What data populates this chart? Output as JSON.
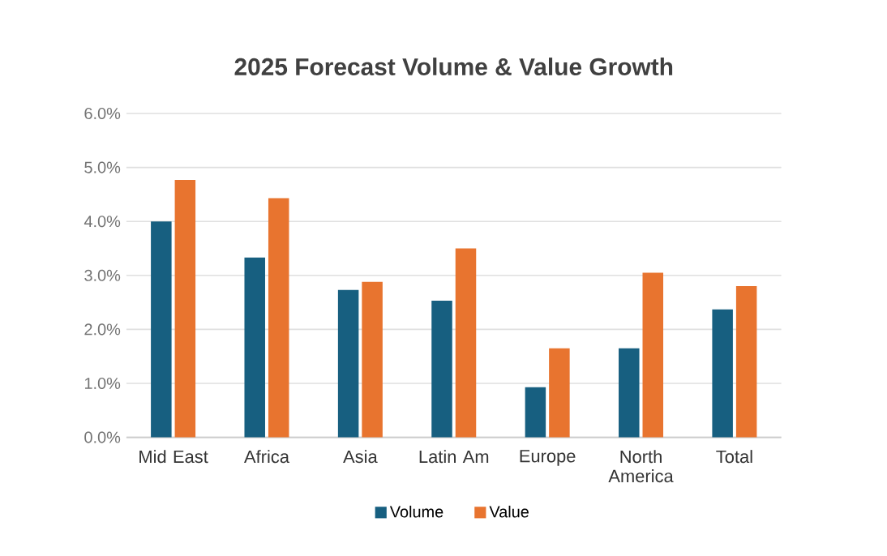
{
  "chart_data": {
    "type": "bar",
    "title": "2025 Forecast Volume & Value Growth",
    "categories": [
      "Mid East",
      "Africa",
      "Asia",
      "Latin Am",
      "Europe",
      "North America",
      "Total"
    ],
    "series": [
      {
        "name": "Volume",
        "color": "#175f80",
        "values": [
          4.0,
          3.33,
          2.73,
          2.53,
          0.93,
          1.65,
          2.37
        ]
      },
      {
        "name": "Value",
        "color": "#e8742f",
        "values": [
          4.77,
          4.43,
          2.88,
          3.5,
          1.65,
          3.05,
          2.8
        ]
      }
    ],
    "ylim": [
      0,
      6
    ],
    "yticks": [
      {
        "value": 0,
        "label": "0.0%"
      },
      {
        "value": 1,
        "label": "1.0%"
      },
      {
        "value": 2,
        "label": "2.0%"
      },
      {
        "value": 3,
        "label": "3.0%"
      },
      {
        "value": 4,
        "label": "4.0%"
      },
      {
        "value": 5,
        "label": "5.0%"
      },
      {
        "value": 6,
        "label": "6.0%"
      }
    ],
    "grid": "y",
    "legend": "bottom"
  }
}
